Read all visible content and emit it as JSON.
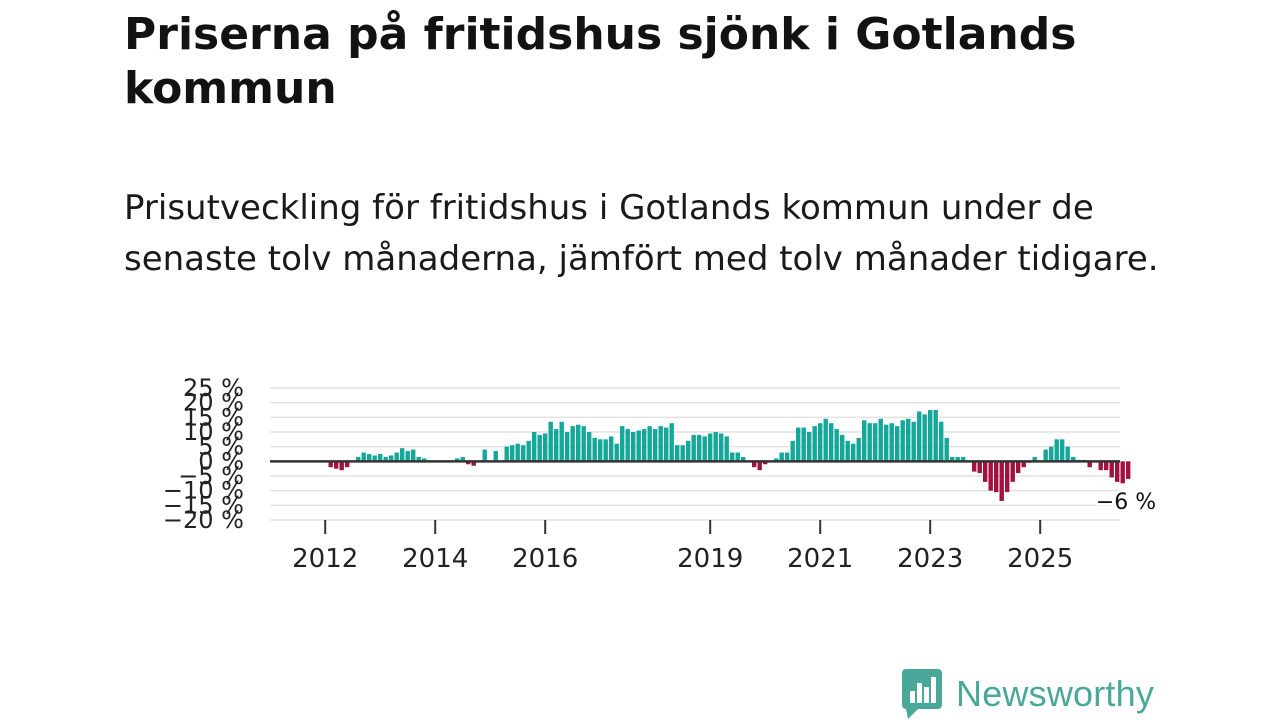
{
  "header": {
    "title": "Priserna på fritidshus sjönk i Gotlands kommun",
    "subtitle": "Prisutveckling för fritidshus i Gotlands kommun under de senaste tolv månaderna, jämfört med tolv månader tidigare."
  },
  "brand": {
    "name": "Newsworthy",
    "color": "#4aa89a"
  },
  "colors": {
    "positive": "#14a89b",
    "negative": "#a3123e",
    "zero_line": "#333333",
    "grid": "#e2e2e2"
  },
  "chart_data": {
    "type": "bar",
    "title": "Prisutveckling för fritidshus i Gotlands kommun",
    "unit": "%",
    "ylim": [
      -20,
      25
    ],
    "y_ticks": [
      25,
      20,
      15,
      10,
      5,
      0,
      -5,
      -10,
      -15,
      -20
    ],
    "y_tick_labels": [
      "25 %",
      "20 %",
      "15 %",
      "10 %",
      "5 %",
      "0 %",
      "−5 %",
      "−10 %",
      "−15 %",
      "−20 %"
    ],
    "x_tick_labels": [
      {
        "index": 6,
        "label": "2012"
      },
      {
        "index": 26,
        "label": "2014"
      },
      {
        "index": 46,
        "label": "2016"
      },
      {
        "index": 76,
        "label": "2019"
      },
      {
        "index": 96,
        "label": "2021"
      },
      {
        "index": 116,
        "label": "2023"
      },
      {
        "index": 136,
        "label": "2025"
      }
    ],
    "last_value_label": "−6 %",
    "values": [
      0,
      0,
      0,
      0,
      0,
      0,
      0,
      -2,
      -2.5,
      -3,
      -2,
      0,
      1.5,
      3,
      2.5,
      2,
      2.5,
      1.5,
      2,
      3,
      4.5,
      3.5,
      4,
      1.5,
      1,
      0,
      0,
      0,
      0,
      0,
      1,
      1.5,
      -1,
      -1.5,
      0,
      4,
      0,
      3.5,
      0,
      5,
      5.5,
      6,
      5.5,
      7,
      10,
      9,
      9.5,
      13.5,
      11,
      13.5,
      10,
      12,
      12.5,
      12,
      10,
      8,
      7.5,
      7.5,
      8.5,
      6,
      12,
      11,
      10,
      10.5,
      11,
      12,
      11,
      12,
      11.5,
      13,
      5.5,
      5.5,
      7,
      9,
      9,
      8.5,
      9.5,
      10,
      9.5,
      8.5,
      3,
      3,
      1.5,
      0,
      -2,
      -3,
      -1,
      0,
      1,
      3,
      3,
      7,
      11.5,
      11.5,
      10,
      12,
      13,
      14.5,
      13,
      11,
      9,
      7,
      6,
      8,
      14,
      13,
      13,
      14.5,
      12.5,
      13,
      12,
      14,
      14.5,
      13.5,
      17,
      16,
      17.5,
      17.5,
      13.5,
      8,
      1.5,
      1.5,
      1.5,
      0,
      -3.5,
      -4,
      -7,
      -10,
      -10.5,
      -13.5,
      -10.5,
      -7,
      -4,
      -2,
      -0.5,
      1.5,
      0,
      4,
      5,
      7.5,
      7.5,
      5,
      1.5,
      0.5,
      0.5,
      -2,
      0,
      -3,
      -3,
      -5.5,
      -7,
      -7.5,
      -6
    ]
  }
}
